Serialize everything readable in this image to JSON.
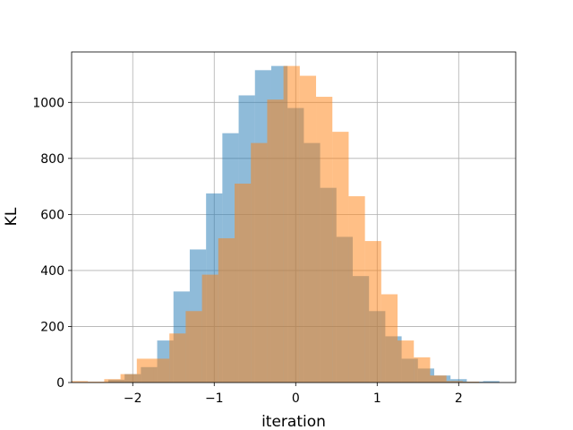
{
  "chart_data": {
    "type": "bar",
    "subtype": "overlapping-histogram",
    "title": "",
    "xlabel": "iteration",
    "ylabel": "KL",
    "xlim": [
      -2.75,
      2.7
    ],
    "ylim": [
      0,
      1180
    ],
    "xticks": [
      -2,
      -1,
      0,
      1,
      2
    ],
    "xtick_labels": [
      "−2",
      "−1",
      "0",
      "1",
      "2"
    ],
    "yticks": [
      0,
      200,
      400,
      600,
      800,
      1000
    ],
    "ytick_labels": [
      "0",
      "200",
      "400",
      "600",
      "800",
      "1000"
    ],
    "grid": true,
    "legend": "none",
    "series": [
      {
        "color": "#1f77b4",
        "opacity": 0.5,
        "bins": [
          [
            -2.3,
            -2.1,
            10
          ],
          [
            -2.1,
            -1.9,
            30
          ],
          [
            -1.9,
            -1.7,
            55
          ],
          [
            -1.7,
            -1.5,
            150
          ],
          [
            -1.5,
            -1.3,
            325
          ],
          [
            -1.3,
            -1.1,
            475
          ],
          [
            -1.1,
            -0.9,
            675
          ],
          [
            -0.9,
            -0.7,
            890
          ],
          [
            -0.7,
            -0.5,
            1025
          ],
          [
            -0.5,
            -0.3,
            1115
          ],
          [
            -0.3,
            -0.1,
            1130
          ],
          [
            -0.1,
            0.1,
            980
          ],
          [
            0.1,
            0.3,
            855
          ],
          [
            0.3,
            0.5,
            695
          ],
          [
            0.5,
            0.7,
            520
          ],
          [
            0.7,
            0.9,
            380
          ],
          [
            0.9,
            1.1,
            255
          ],
          [
            1.1,
            1.3,
            165
          ],
          [
            1.3,
            1.5,
            85
          ],
          [
            1.5,
            1.7,
            50
          ],
          [
            1.7,
            1.9,
            25
          ],
          [
            1.9,
            2.1,
            12
          ],
          [
            2.1,
            2.3,
            3
          ],
          [
            2.3,
            2.5,
            5
          ]
        ]
      },
      {
        "color": "#ff7f0e",
        "opacity": 0.5,
        "bins": [
          [
            -2.75,
            -2.55,
            5
          ],
          [
            -2.55,
            -2.35,
            3
          ],
          [
            -2.35,
            -2.15,
            12
          ],
          [
            -2.15,
            -1.95,
            30
          ],
          [
            -1.95,
            -1.75,
            85
          ],
          [
            -1.75,
            -1.55,
            85
          ],
          [
            -1.55,
            -1.35,
            175
          ],
          [
            -1.35,
            -1.15,
            255
          ],
          [
            -1.15,
            -0.95,
            385
          ],
          [
            -0.95,
            -0.75,
            515
          ],
          [
            -0.75,
            -0.55,
            710
          ],
          [
            -0.55,
            -0.35,
            855
          ],
          [
            -0.35,
            -0.15,
            1010
          ],
          [
            -0.15,
            0.05,
            1130
          ],
          [
            0.05,
            0.25,
            1095
          ],
          [
            0.25,
            0.45,
            1020
          ],
          [
            0.45,
            0.65,
            895
          ],
          [
            0.65,
            0.85,
            665
          ],
          [
            0.85,
            1.05,
            505
          ],
          [
            1.05,
            1.25,
            315
          ],
          [
            1.25,
            1.45,
            150
          ],
          [
            1.45,
            1.65,
            90
          ],
          [
            1.65,
            1.85,
            25
          ],
          [
            1.85,
            2.05,
            5
          ],
          [
            2.05,
            2.25,
            3
          ]
        ]
      }
    ]
  }
}
